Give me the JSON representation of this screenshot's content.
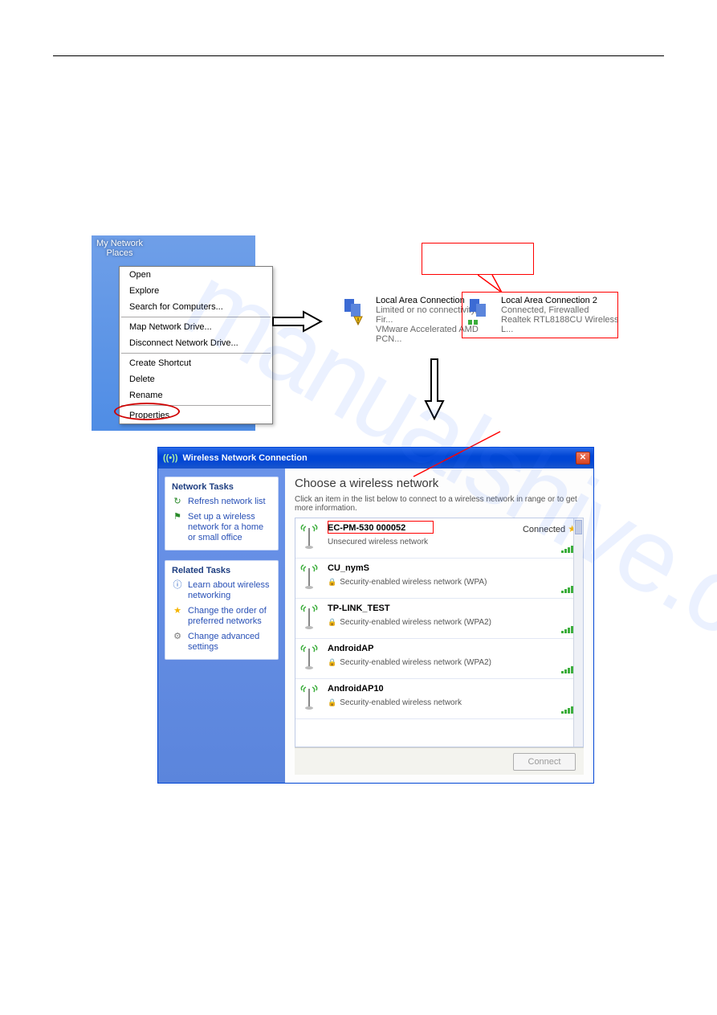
{
  "watermark": "manualshive.com",
  "desktop": {
    "icon_label": "My Network Places",
    "menu": {
      "items": [
        "Open",
        "Explore",
        "Search for Computers...",
        "__sep__",
        "Map Network Drive...",
        "Disconnect Network Drive...",
        "__sep__",
        "Create Shortcut",
        "Delete",
        "Rename",
        "__sep__",
        "Properties"
      ]
    }
  },
  "netconn1": {
    "title": "Local Area Connection",
    "line2": "Limited or no connectivity, Fir...",
    "line3": "VMware Accelerated AMD PCN..."
  },
  "netconn2": {
    "title": "Local Area Connection 2",
    "line2": "Connected, Firewalled",
    "line3": "Realtek RTL8188CU Wireless L..."
  },
  "wlan": {
    "title": "Wireless Network Connection",
    "side": {
      "tasks_title": "Network Tasks",
      "task1": "Refresh network list",
      "task2": "Set up a wireless network for a home or small office",
      "related_title": "Related Tasks",
      "rel1": "Learn about wireless networking",
      "rel2": "Change the order of preferred networks",
      "rel3": "Change advanced settings"
    },
    "main": {
      "heading": "Choose a wireless network",
      "hint": "Click an item in the list below to connect to a wireless network in range or to get more information.",
      "connected_label": "Connected",
      "connect_btn": "Connect"
    },
    "networks": [
      {
        "name": "EC-PM-530 000052",
        "sub": "Unsecured wireless network",
        "secure": false,
        "connected": true,
        "bars": 5
      },
      {
        "name": "CU_nymS",
        "sub": "Security-enabled wireless network (WPA)",
        "secure": true,
        "connected": false,
        "bars": 5
      },
      {
        "name": "TP-LINK_TEST",
        "sub": "Security-enabled wireless network (WPA2)",
        "secure": true,
        "connected": false,
        "bars": 5
      },
      {
        "name": "AndroidAP",
        "sub": "Security-enabled wireless network (WPA2)",
        "secure": true,
        "connected": false,
        "bars": 5
      },
      {
        "name": "AndroidAP10",
        "sub": "Security-enabled wireless network",
        "secure": true,
        "connected": false,
        "bars": 5
      }
    ]
  },
  "colors": {
    "xp_blue": "#0046d5",
    "xp_light": "#6a93e9",
    "red": "#ff0000",
    "green": "#3cae3c"
  }
}
